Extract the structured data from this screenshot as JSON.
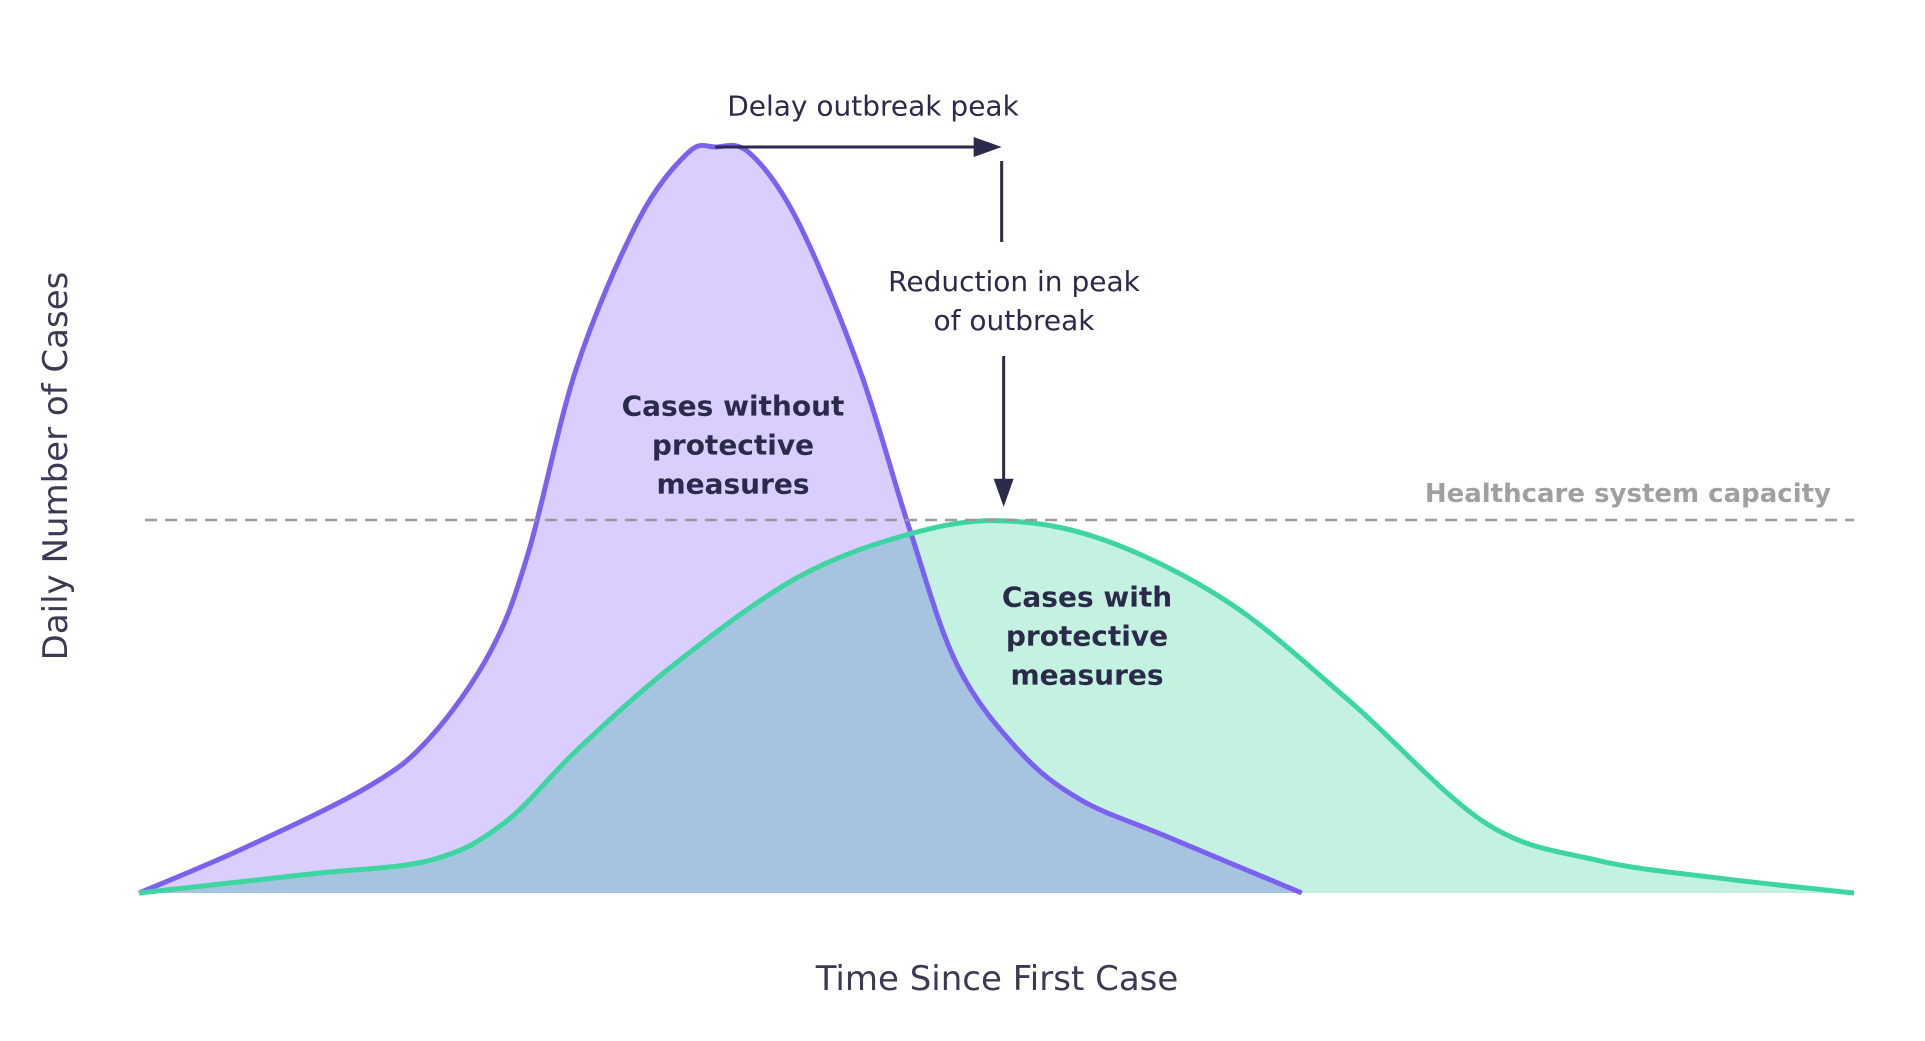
{
  "chart_data": {
    "type": "area",
    "x_label": "Time Since First Case",
    "y_label": "Daily Number of Cases",
    "xlim": [
      0,
      100
    ],
    "ylim": [
      0,
      100
    ],
    "grid": false,
    "series": [
      {
        "name": "Cases without protective measures",
        "color": "#7b61f0",
        "fill": "#d9ceff",
        "x": [
          0,
          6.2,
          13.4,
          17.0,
          20.5,
          22.7,
          25.5,
          29.1,
          32.0,
          33.6,
          35.6,
          38.4,
          42.0,
          44.9,
          47.7,
          51.3,
          54.9,
          59.9,
          67.8
        ],
        "values": [
          0,
          6.1,
          14.3,
          20.9,
          32.4,
          45.6,
          70.3,
          90.1,
          99.2,
          100,
          99.2,
          90.1,
          70.3,
          49.0,
          30.6,
          19.1,
          12.5,
          7.6,
          0
        ]
      },
      {
        "name": "Cases with protective measures",
        "color": "#3dd6a0",
        "fill": "#c3f2e0",
        "x": [
          0,
          9.8,
          17.0,
          21.3,
          25.6,
          31.3,
          38.4,
          44.9,
          50.3,
          56.3,
          63.5,
          70.6,
          78.5,
          85.0,
          92.1,
          100
        ],
        "values": [
          0,
          2.5,
          4.4,
          9.4,
          19.3,
          30.8,
          42.3,
          48.1,
          49.9,
          47.3,
          39.0,
          25.7,
          9.4,
          4.4,
          2.0,
          0
        ]
      }
    ],
    "capacity": {
      "label": "Healthcare system capacity",
      "value": 50
    },
    "annotations": [
      "Delay outbreak peak",
      "Reduction in peak of outbreak"
    ]
  }
}
